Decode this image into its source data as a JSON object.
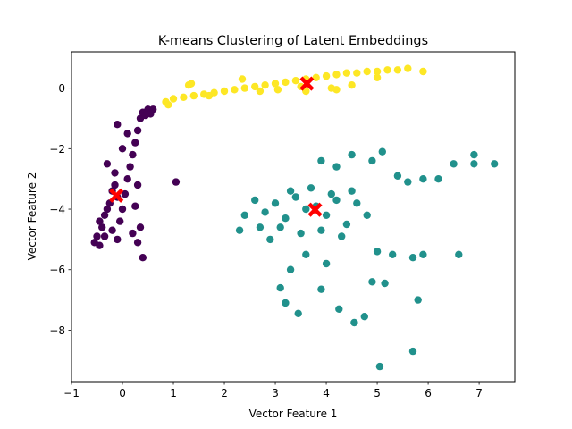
{
  "chart_data": {
    "type": "scatter",
    "title": "K-means Clustering of Latent Embeddings",
    "xlabel": "Vector Feature 1",
    "ylabel": "Vector Feature 2",
    "xlim": [
      -1.0,
      7.7
    ],
    "ylim": [
      -9.7,
      1.2
    ],
    "xticks": [
      -1,
      0,
      1,
      2,
      3,
      4,
      5,
      6,
      7
    ],
    "yticks": [
      0,
      -2,
      -4,
      -6,
      -8
    ],
    "xtick_labels": [
      "−1",
      "0",
      "1",
      "2",
      "3",
      "4",
      "5",
      "6",
      "7"
    ],
    "ytick_labels": [
      "0",
      "−2",
      "−4",
      "−6",
      "−8"
    ],
    "grid": false,
    "legend": "none",
    "series": [
      {
        "color": "#440154",
        "points": [
          [
            -0.55,
            -5.1
          ],
          [
            -0.5,
            -4.9
          ],
          [
            -0.45,
            -5.2
          ],
          [
            -0.4,
            -4.6
          ],
          [
            -0.35,
            -4.2
          ],
          [
            -0.3,
            -4.0
          ],
          [
            -0.25,
            -3.8
          ],
          [
            -0.2,
            -3.4
          ],
          [
            -0.15,
            -3.2
          ],
          [
            -0.1,
            -3.6
          ],
          [
            -0.05,
            -4.4
          ],
          [
            0.0,
            -4.0
          ],
          [
            0.05,
            -3.5
          ],
          [
            0.1,
            -3.0
          ],
          [
            0.15,
            -2.6
          ],
          [
            0.2,
            -2.2
          ],
          [
            0.25,
            -1.8
          ],
          [
            0.3,
            -1.4
          ],
          [
            0.35,
            -1.0
          ],
          [
            0.4,
            -0.8
          ],
          [
            0.5,
            -0.7
          ],
          [
            0.6,
            -0.7
          ],
          [
            0.55,
            -0.85
          ],
          [
            0.45,
            -0.9
          ],
          [
            -0.3,
            -2.5
          ],
          [
            -0.15,
            -2.8
          ],
          [
            0.0,
            -2.0
          ],
          [
            0.1,
            -1.5
          ],
          [
            0.35,
            -4.6
          ],
          [
            0.4,
            -5.6
          ],
          [
            0.3,
            -5.1
          ],
          [
            0.2,
            -4.8
          ],
          [
            1.05,
            -3.1
          ],
          [
            0.3,
            -3.2
          ],
          [
            0.25,
            -3.9
          ],
          [
            -0.45,
            -4.4
          ],
          [
            -0.35,
            -4.9
          ],
          [
            -0.2,
            -4.7
          ],
          [
            -0.1,
            -5.0
          ],
          [
            -0.1,
            -1.2
          ]
        ]
      },
      {
        "color": "#21918c",
        "points": [
          [
            2.6,
            -3.7
          ],
          [
            2.8,
            -4.1
          ],
          [
            3.0,
            -3.8
          ],
          [
            3.2,
            -4.3
          ],
          [
            3.4,
            -3.6
          ],
          [
            3.6,
            -4.0
          ],
          [
            3.8,
            -3.9
          ],
          [
            4.0,
            -4.2
          ],
          [
            4.2,
            -3.7
          ],
          [
            4.4,
            -4.5
          ],
          [
            4.6,
            -3.8
          ],
          [
            4.8,
            -4.2
          ],
          [
            3.1,
            -4.6
          ],
          [
            3.5,
            -4.8
          ],
          [
            3.9,
            -4.7
          ],
          [
            4.3,
            -4.9
          ],
          [
            2.7,
            -4.6
          ],
          [
            2.9,
            -5.0
          ],
          [
            3.3,
            -3.4
          ],
          [
            3.7,
            -3.3
          ],
          [
            4.1,
            -3.5
          ],
          [
            4.5,
            -3.4
          ],
          [
            2.4,
            -4.2
          ],
          [
            2.3,
            -4.7
          ],
          [
            3.9,
            -2.4
          ],
          [
            4.2,
            -2.6
          ],
          [
            4.5,
            -2.2
          ],
          [
            4.9,
            -2.4
          ],
          [
            5.1,
            -2.1
          ],
          [
            5.4,
            -2.9
          ],
          [
            5.6,
            -3.1
          ],
          [
            5.9,
            -3.0
          ],
          [
            6.2,
            -3.0
          ],
          [
            6.5,
            -2.5
          ],
          [
            6.9,
            -2.5
          ],
          [
            7.3,
            -2.5
          ],
          [
            6.9,
            -2.2
          ],
          [
            5.0,
            -5.4
          ],
          [
            5.3,
            -5.5
          ],
          [
            5.7,
            -5.6
          ],
          [
            5.9,
            -5.5
          ],
          [
            6.6,
            -5.5
          ],
          [
            4.9,
            -6.4
          ],
          [
            5.15,
            -6.45
          ],
          [
            3.9,
            -6.65
          ],
          [
            3.45,
            -7.45
          ],
          [
            3.1,
            -6.6
          ],
          [
            3.2,
            -7.1
          ],
          [
            4.25,
            -7.3
          ],
          [
            4.75,
            -7.55
          ],
          [
            4.55,
            -7.75
          ],
          [
            5.8,
            -7.0
          ],
          [
            5.7,
            -8.7
          ],
          [
            5.05,
            -9.2
          ],
          [
            3.3,
            -6.0
          ],
          [
            4.0,
            -5.8
          ],
          [
            3.6,
            -5.5
          ]
        ]
      },
      {
        "color": "#fde725",
        "points": [
          [
            0.85,
            -0.45
          ],
          [
            1.0,
            -0.35
          ],
          [
            1.2,
            -0.3
          ],
          [
            1.4,
            -0.25
          ],
          [
            1.6,
            -0.2
          ],
          [
            1.8,
            -0.15
          ],
          [
            2.0,
            -0.1
          ],
          [
            2.2,
            -0.05
          ],
          [
            2.4,
            0.0
          ],
          [
            2.6,
            0.05
          ],
          [
            2.8,
            0.1
          ],
          [
            3.0,
            0.15
          ],
          [
            3.2,
            0.2
          ],
          [
            3.4,
            0.25
          ],
          [
            3.6,
            0.3
          ],
          [
            3.8,
            0.35
          ],
          [
            4.0,
            0.4
          ],
          [
            4.2,
            0.45
          ],
          [
            4.4,
            0.5
          ],
          [
            4.6,
            0.5
          ],
          [
            4.8,
            0.55
          ],
          [
            5.0,
            0.55
          ],
          [
            5.2,
            0.6
          ],
          [
            5.4,
            0.6
          ],
          [
            5.6,
            0.65
          ],
          [
            5.9,
            0.55
          ],
          [
            1.3,
            0.1
          ],
          [
            1.35,
            0.15
          ],
          [
            1.7,
            -0.25
          ],
          [
            2.35,
            0.3
          ],
          [
            2.7,
            -0.1
          ],
          [
            3.05,
            -0.05
          ],
          [
            3.5,
            0.05
          ],
          [
            4.1,
            0.0
          ],
          [
            4.5,
            0.1
          ],
          [
            5.0,
            0.35
          ],
          [
            3.6,
            -0.1
          ],
          [
            4.2,
            -0.05
          ],
          [
            0.9,
            -0.55
          ]
        ]
      }
    ],
    "centroids": {
      "color": "#ff0000",
      "marker": "X",
      "points": [
        [
          -0.12,
          -3.55
        ],
        [
          3.78,
          -4.02
        ],
        [
          3.62,
          0.15
        ]
      ]
    }
  }
}
